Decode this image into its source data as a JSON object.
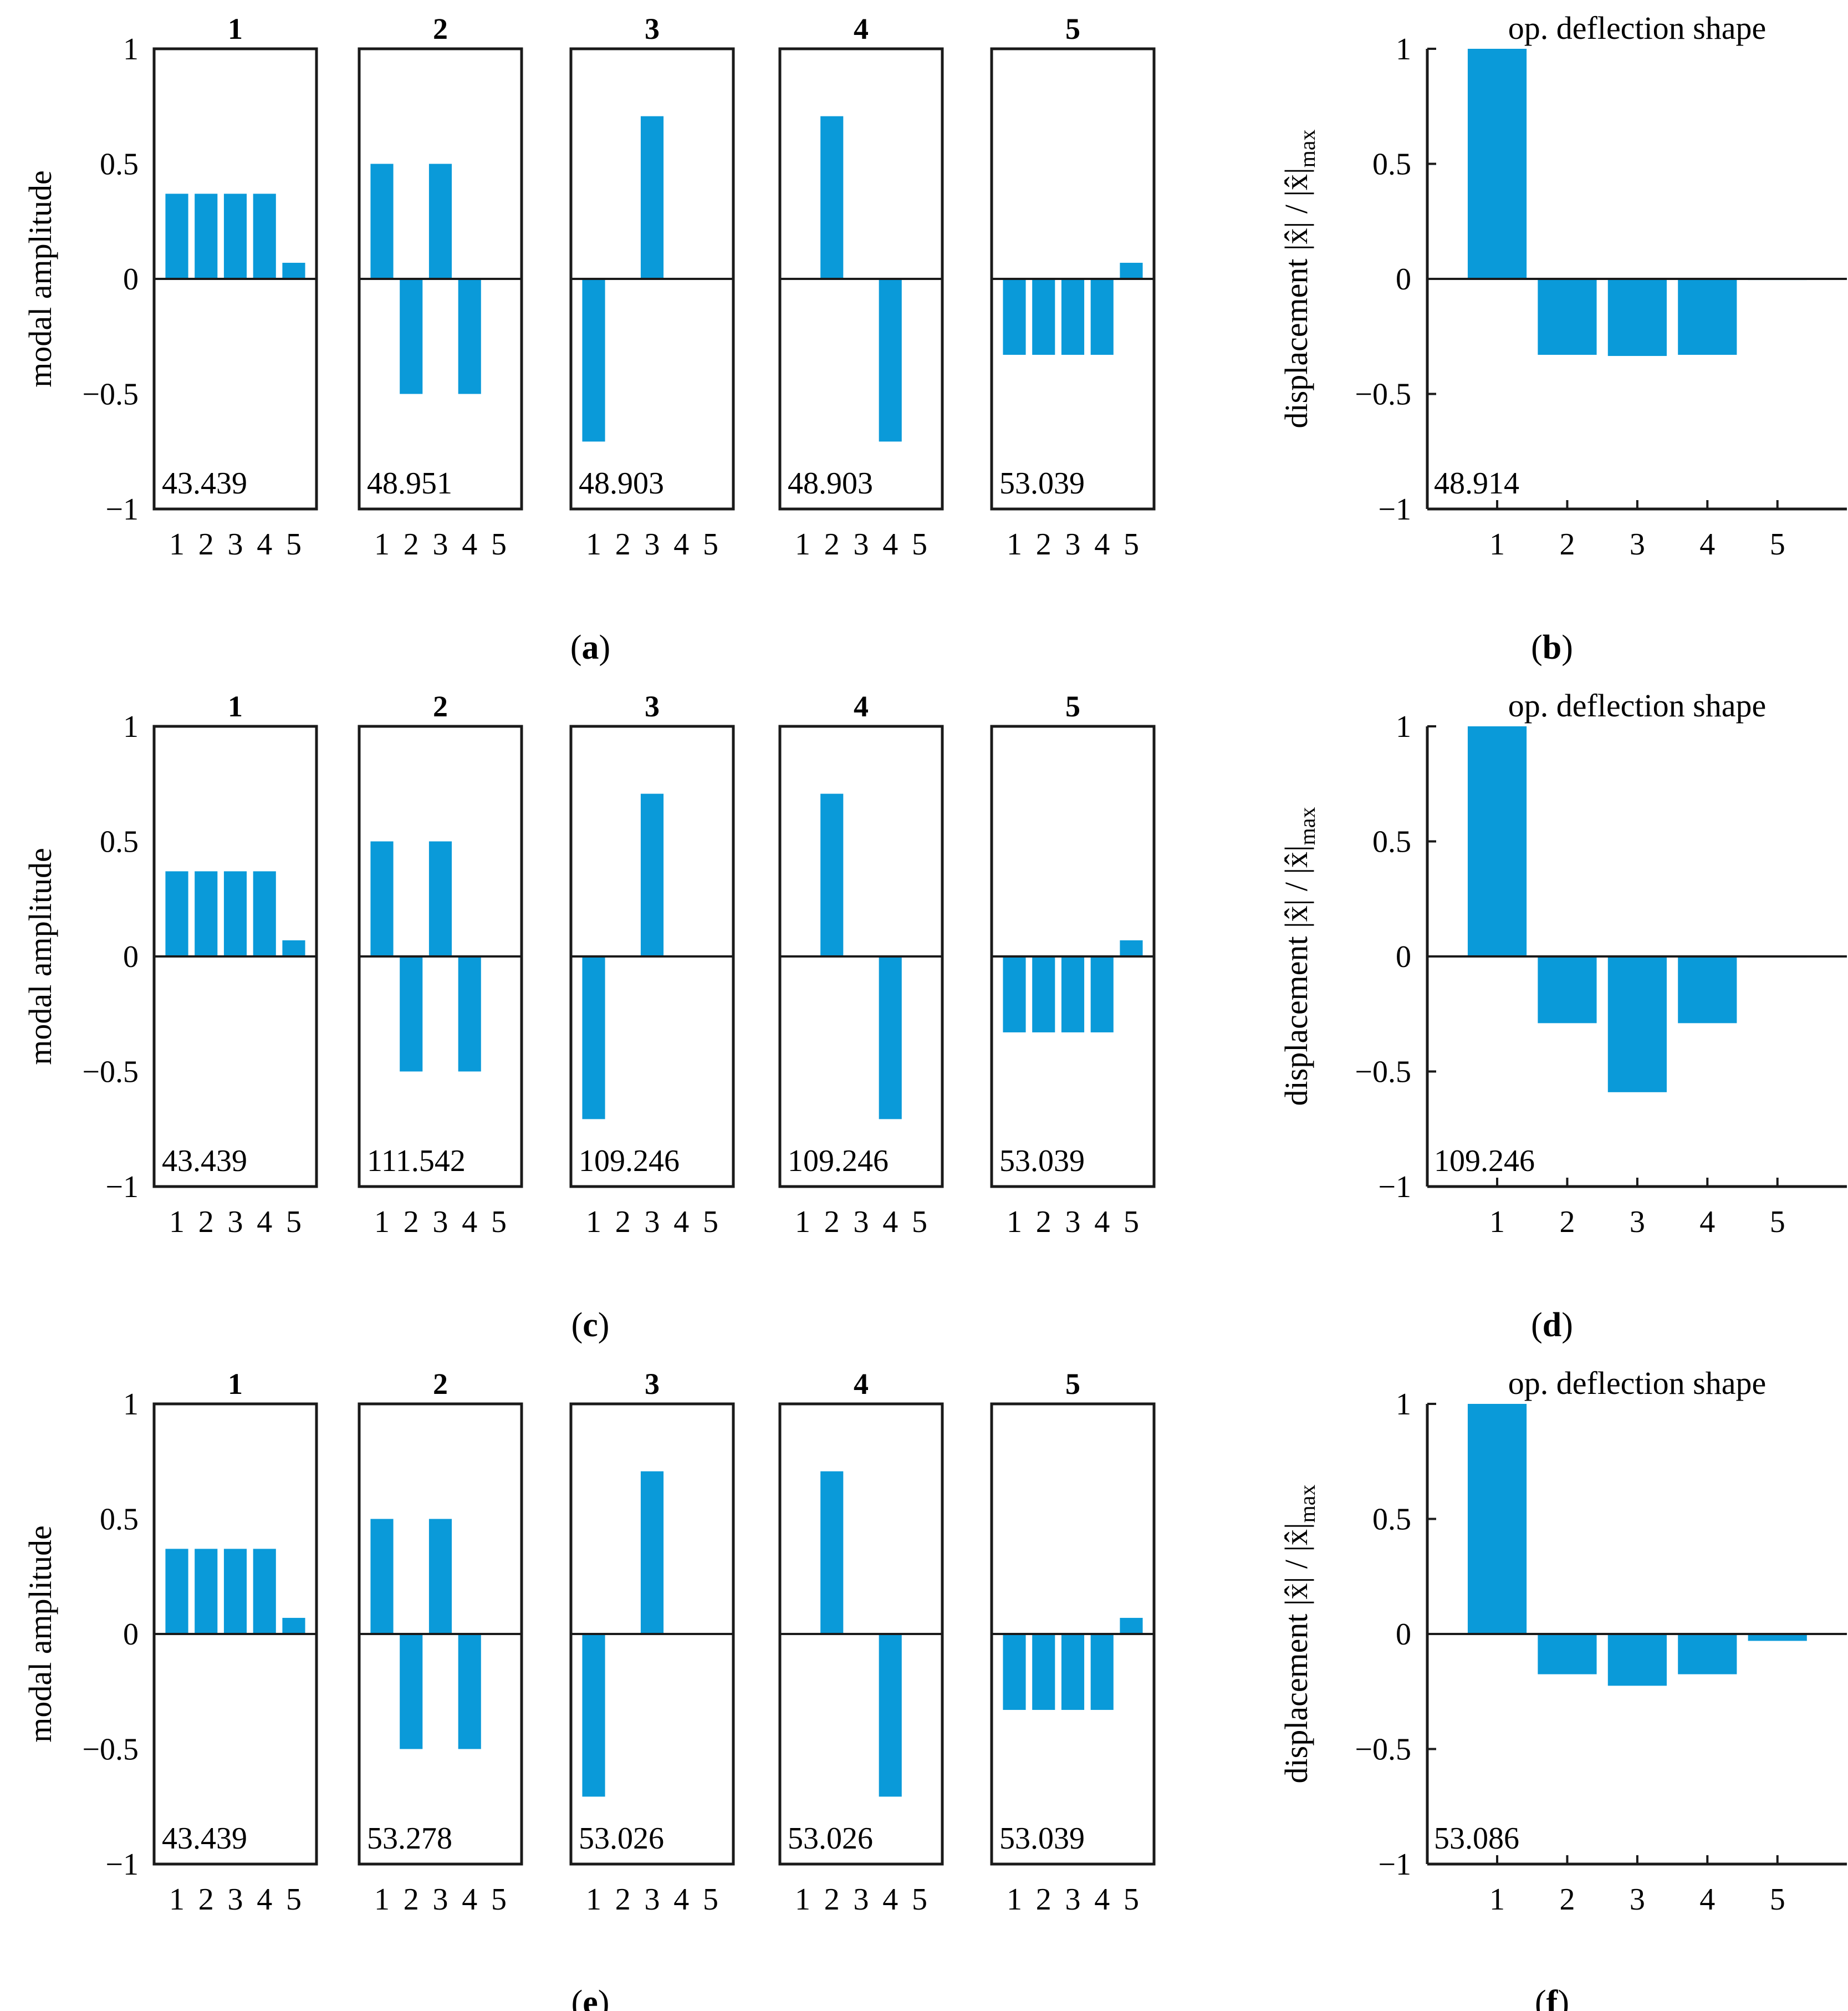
{
  "colors": {
    "bar": "#0a9ad9",
    "axis": "#1a1a1a",
    "zero": "#1a1a1a"
  },
  "labels": {
    "modal_ylabel": "modal amplitude",
    "deflection_ylabel_main": "displacement |x̂| / |x̂|",
    "deflection_ylabel_sub": "max",
    "deflection_title": "op. deflection shape"
  },
  "chart_data": [
    {
      "caption": "a",
      "type": "bar",
      "ylim": [
        -1,
        1
      ],
      "yticks": [
        1,
        0.5,
        0,
        -0.5,
        -1
      ],
      "ytick_labels": [
        "1",
        "0.5",
        "0",
        "−0.5",
        "−1"
      ],
      "panels": [
        {
          "title": "1",
          "categories": [
            "1",
            "2",
            "3",
            "4",
            "5"
          ],
          "values": [
            0.37,
            0.37,
            0.37,
            0.37,
            0.07
          ],
          "annotation": "43.439"
        },
        {
          "title": "2",
          "categories": [
            "1",
            "2",
            "3",
            "4",
            "5"
          ],
          "values": [
            0.5,
            -0.5,
            0.5,
            -0.5,
            0.0
          ],
          "annotation": "48.951"
        },
        {
          "title": "3",
          "categories": [
            "1",
            "2",
            "3",
            "4",
            "5"
          ],
          "values": [
            -0.707,
            0.0,
            0.707,
            0.0,
            0.0
          ],
          "annotation": "48.903"
        },
        {
          "title": "4",
          "categories": [
            "1",
            "2",
            "3",
            "4",
            "5"
          ],
          "values": [
            0.0,
            0.707,
            0.0,
            -0.707,
            0.0
          ],
          "annotation": "48.903"
        },
        {
          "title": "5",
          "categories": [
            "1",
            "2",
            "3",
            "4",
            "5"
          ],
          "values": [
            -0.33,
            -0.33,
            -0.33,
            -0.33,
            0.07
          ],
          "annotation": "53.039"
        }
      ]
    },
    {
      "caption": "b",
      "type": "bar",
      "title": "op. deflection shape",
      "ylim": [
        -1,
        1
      ],
      "yticks": [
        1,
        0.5,
        0,
        -0.5,
        -1
      ],
      "ytick_labels": [
        "1",
        "0.5",
        "0",
        "−0.5",
        "−1"
      ],
      "categories": [
        "1",
        "2",
        "3",
        "4",
        "5"
      ],
      "values": [
        1.0,
        -0.33,
        -0.335,
        -0.33,
        -0.005
      ],
      "annotation": "48.914"
    },
    {
      "caption": "c",
      "type": "bar",
      "ylim": [
        -1,
        1
      ],
      "yticks": [
        1,
        0.5,
        0,
        -0.5,
        -1
      ],
      "ytick_labels": [
        "1",
        "0.5",
        "0",
        "−0.5",
        "−1"
      ],
      "panels": [
        {
          "title": "1",
          "categories": [
            "1",
            "2",
            "3",
            "4",
            "5"
          ],
          "values": [
            0.37,
            0.37,
            0.37,
            0.37,
            0.07
          ],
          "annotation": "43.439"
        },
        {
          "title": "2",
          "categories": [
            "1",
            "2",
            "3",
            "4",
            "5"
          ],
          "values": [
            0.5,
            -0.5,
            0.5,
            -0.5,
            0.0
          ],
          "annotation": "111.542"
        },
        {
          "title": "3",
          "categories": [
            "1",
            "2",
            "3",
            "4",
            "5"
          ],
          "values": [
            -0.707,
            0.0,
            0.707,
            0.0,
            0.0
          ],
          "annotation": "109.246"
        },
        {
          "title": "4",
          "categories": [
            "1",
            "2",
            "3",
            "4",
            "5"
          ],
          "values": [
            0.0,
            0.707,
            0.0,
            -0.707,
            0.0
          ],
          "annotation": "109.246"
        },
        {
          "title": "5",
          "categories": [
            "1",
            "2",
            "3",
            "4",
            "5"
          ],
          "values": [
            -0.33,
            -0.33,
            -0.33,
            -0.33,
            0.07
          ],
          "annotation": "53.039"
        }
      ]
    },
    {
      "caption": "d",
      "type": "bar",
      "title": "op. deflection shape",
      "ylim": [
        -1,
        1
      ],
      "yticks": [
        1,
        0.5,
        0,
        -0.5,
        -1
      ],
      "ytick_labels": [
        "1",
        "0.5",
        "0",
        "−0.5",
        "−1"
      ],
      "categories": [
        "1",
        "2",
        "3",
        "4",
        "5"
      ],
      "values": [
        1.0,
        -0.29,
        -0.59,
        -0.29,
        -0.005
      ],
      "annotation": "109.246"
    },
    {
      "caption": "e",
      "type": "bar",
      "ylim": [
        -1,
        1
      ],
      "yticks": [
        1,
        0.5,
        0,
        -0.5,
        -1
      ],
      "ytick_labels": [
        "1",
        "0.5",
        "0",
        "−0.5",
        "−1"
      ],
      "panels": [
        {
          "title": "1",
          "categories": [
            "1",
            "2",
            "3",
            "4",
            "5"
          ],
          "values": [
            0.37,
            0.37,
            0.37,
            0.37,
            0.07
          ],
          "annotation": "43.439"
        },
        {
          "title": "2",
          "categories": [
            "1",
            "2",
            "3",
            "4",
            "5"
          ],
          "values": [
            0.5,
            -0.5,
            0.5,
            -0.5,
            0.0
          ],
          "annotation": "53.278"
        },
        {
          "title": "3",
          "categories": [
            "1",
            "2",
            "3",
            "4",
            "5"
          ],
          "values": [
            -0.707,
            0.0,
            0.707,
            0.0,
            0.0
          ],
          "annotation": "53.026"
        },
        {
          "title": "4",
          "categories": [
            "1",
            "2",
            "3",
            "4",
            "5"
          ],
          "values": [
            0.0,
            0.707,
            0.0,
            -0.707,
            0.0
          ],
          "annotation": "53.026"
        },
        {
          "title": "5",
          "categories": [
            "1",
            "2",
            "3",
            "4",
            "5"
          ],
          "values": [
            -0.33,
            -0.33,
            -0.33,
            -0.33,
            0.07
          ],
          "annotation": "53.039"
        }
      ]
    },
    {
      "caption": "f",
      "type": "bar",
      "title": "op. deflection shape",
      "ylim": [
        -1,
        1
      ],
      "yticks": [
        1,
        0.5,
        0,
        -0.5,
        -1
      ],
      "ytick_labels": [
        "1",
        "0.5",
        "0",
        "−0.5",
        "−1"
      ],
      "categories": [
        "1",
        "2",
        "3",
        "4",
        "5"
      ],
      "values": [
        1.0,
        -0.175,
        -0.225,
        -0.175,
        -0.03
      ],
      "annotation": "53.086"
    }
  ]
}
